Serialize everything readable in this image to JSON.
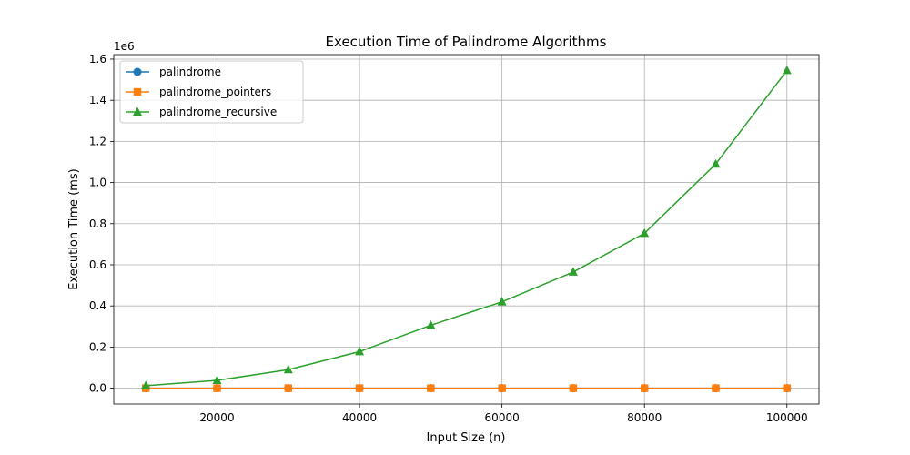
{
  "chart_data": {
    "type": "line",
    "title": "Execution Time of Palindrome Algorithms",
    "xlabel": "Input Size (n)",
    "ylabel": "Execution Time (ms)",
    "y_offset_label": "1e6",
    "xlim": [
      5500,
      104500
    ],
    "ylim": [
      -77000,
      1622000
    ],
    "xticks": [
      20000,
      40000,
      60000,
      80000,
      100000
    ],
    "xtick_labels": [
      "20000",
      "40000",
      "60000",
      "80000",
      "100000"
    ],
    "yticks": [
      0,
      200000,
      400000,
      600000,
      800000,
      1000000,
      1200000,
      1400000,
      1600000
    ],
    "ytick_labels": [
      "0.0",
      "0.2",
      "0.4",
      "0.6",
      "0.8",
      "1.0",
      "1.2",
      "1.4",
      "1.6"
    ],
    "grid": true,
    "legend_position": "top-left",
    "x": [
      10000,
      20000,
      30000,
      40000,
      50000,
      60000,
      70000,
      80000,
      90000,
      100000
    ],
    "series": [
      {
        "name": "palindrome",
        "color": "#1f77b4",
        "marker": "circle",
        "values": [
          10,
          20,
          30,
          40,
          50,
          60,
          70,
          80,
          90,
          100
        ]
      },
      {
        "name": "palindrome_pointers",
        "color": "#ff7f0e",
        "marker": "square",
        "values": [
          5,
          10,
          15,
          20,
          25,
          30,
          35,
          40,
          45,
          50
        ]
      },
      {
        "name": "palindrome_recursive",
        "color": "#2ca02c",
        "marker": "triangle",
        "values": [
          12000,
          38000,
          90000,
          178000,
          306000,
          420000,
          565000,
          753000,
          1090000,
          1545000
        ]
      }
    ]
  }
}
